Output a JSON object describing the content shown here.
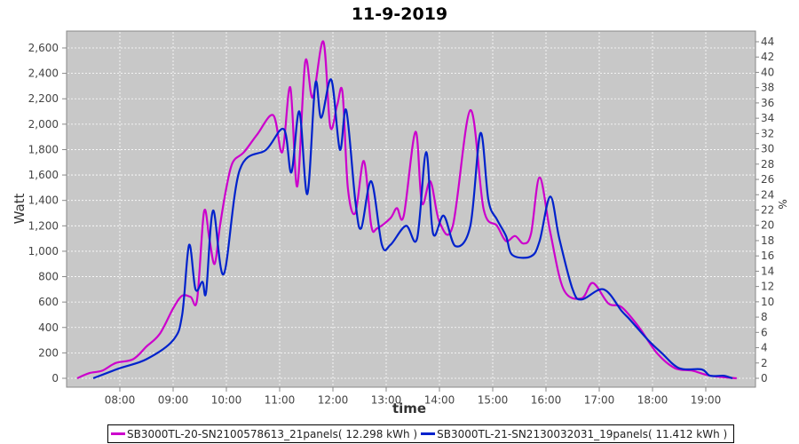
{
  "chart_data": {
    "type": "line",
    "title": "11-9-2019",
    "xlabel": "time",
    "ylabel": "Watt",
    "y2label": "%",
    "xlim": [
      7.0,
      19.83
    ],
    "ylim": [
      0,
      2700
    ],
    "y2lim": [
      0,
      44
    ],
    "x_ticks": [
      "08:00",
      "09:00",
      "10:00",
      "11:00",
      "12:00",
      "13:00",
      "14:00",
      "15:00",
      "16:00",
      "17:00",
      "18:00",
      "19:00"
    ],
    "y_ticks": [
      "0",
      "200",
      "400",
      "600",
      "800",
      "1,000",
      "1,200",
      "1,400",
      "1,600",
      "1,800",
      "2,000",
      "2,200",
      "2,400",
      "2,600"
    ],
    "y2_ticks": [
      "0",
      "2",
      "4",
      "6",
      "8",
      "10",
      "12",
      "14",
      "16",
      "18",
      "20",
      "22",
      "24",
      "26",
      "28",
      "30",
      "32",
      "34",
      "36",
      "38",
      "40",
      "42",
      "44"
    ],
    "grid": true,
    "legend_position": "bottom",
    "series": [
      {
        "name": "SB3000TL-20-SN2100578613_21panels( 12.298 kWh )",
        "color": "#cc00cc",
        "x": [
          7.2,
          7.42,
          7.67,
          7.92,
          8.25,
          8.5,
          8.75,
          9.0,
          9.17,
          9.33,
          9.45,
          9.58,
          9.68,
          9.78,
          9.88,
          10.0,
          10.12,
          10.33,
          10.58,
          10.88,
          11.05,
          11.2,
          11.33,
          11.48,
          11.62,
          11.82,
          11.95,
          12.08,
          12.18,
          12.28,
          12.42,
          12.58,
          12.72,
          12.83,
          13.08,
          13.2,
          13.33,
          13.55,
          13.67,
          13.83,
          14.0,
          14.25,
          14.58,
          14.83,
          15.08,
          15.25,
          15.42,
          15.58,
          15.72,
          15.88,
          16.08,
          16.33,
          16.67,
          16.88,
          17.17,
          17.42,
          17.75,
          18.08,
          18.42,
          18.75,
          19.08,
          19.58
        ],
        "y": [
          0,
          40,
          60,
          120,
          150,
          250,
          350,
          550,
          650,
          640,
          620,
          1310,
          1100,
          900,
          1200,
          1500,
          1700,
          1780,
          1920,
          2070,
          1780,
          2290,
          1510,
          2490,
          2210,
          2650,
          1980,
          2150,
          2250,
          1500,
          1300,
          1710,
          1200,
          1180,
          1260,
          1340,
          1280,
          1940,
          1380,
          1550,
          1230,
          1200,
          2110,
          1330,
          1200,
          1080,
          1120,
          1060,
          1140,
          1580,
          1150,
          700,
          630,
          750,
          590,
          560,
          400,
          200,
          80,
          60,
          20,
          0
        ]
      },
      {
        "name": "SB3000TL-21-SN2130032031_19panels( 11.412 kWh )",
        "color": "#0022cc",
        "x": [
          7.5,
          8.0,
          8.5,
          9.0,
          9.17,
          9.3,
          9.42,
          9.55,
          9.62,
          9.75,
          9.95,
          10.25,
          10.75,
          11.08,
          11.22,
          11.37,
          11.52,
          11.67,
          11.78,
          11.97,
          12.13,
          12.25,
          12.42,
          12.53,
          12.72,
          12.92,
          13.08,
          13.37,
          13.58,
          13.75,
          13.88,
          14.08,
          14.3,
          14.58,
          14.77,
          14.92,
          15.08,
          15.25,
          15.37,
          15.72,
          15.88,
          16.08,
          16.25,
          16.5,
          16.67,
          17.08,
          17.42,
          17.58,
          17.92,
          18.17,
          18.5,
          18.92,
          19.08,
          19.33,
          19.5
        ],
        "y": [
          0,
          80,
          150,
          300,
          500,
          1050,
          700,
          760,
          680,
          1320,
          820,
          1640,
          1800,
          1960,
          1620,
          2100,
          1450,
          2320,
          2050,
          2350,
          1800,
          2110,
          1400,
          1180,
          1550,
          1050,
          1050,
          1200,
          1100,
          1780,
          1140,
          1280,
          1040,
          1200,
          1930,
          1400,
          1250,
          1120,
          970,
          960,
          1080,
          1430,
          1100,
          700,
          620,
          700,
          530,
          460,
          300,
          200,
          80,
          70,
          20,
          20,
          0
        ]
      }
    ]
  }
}
